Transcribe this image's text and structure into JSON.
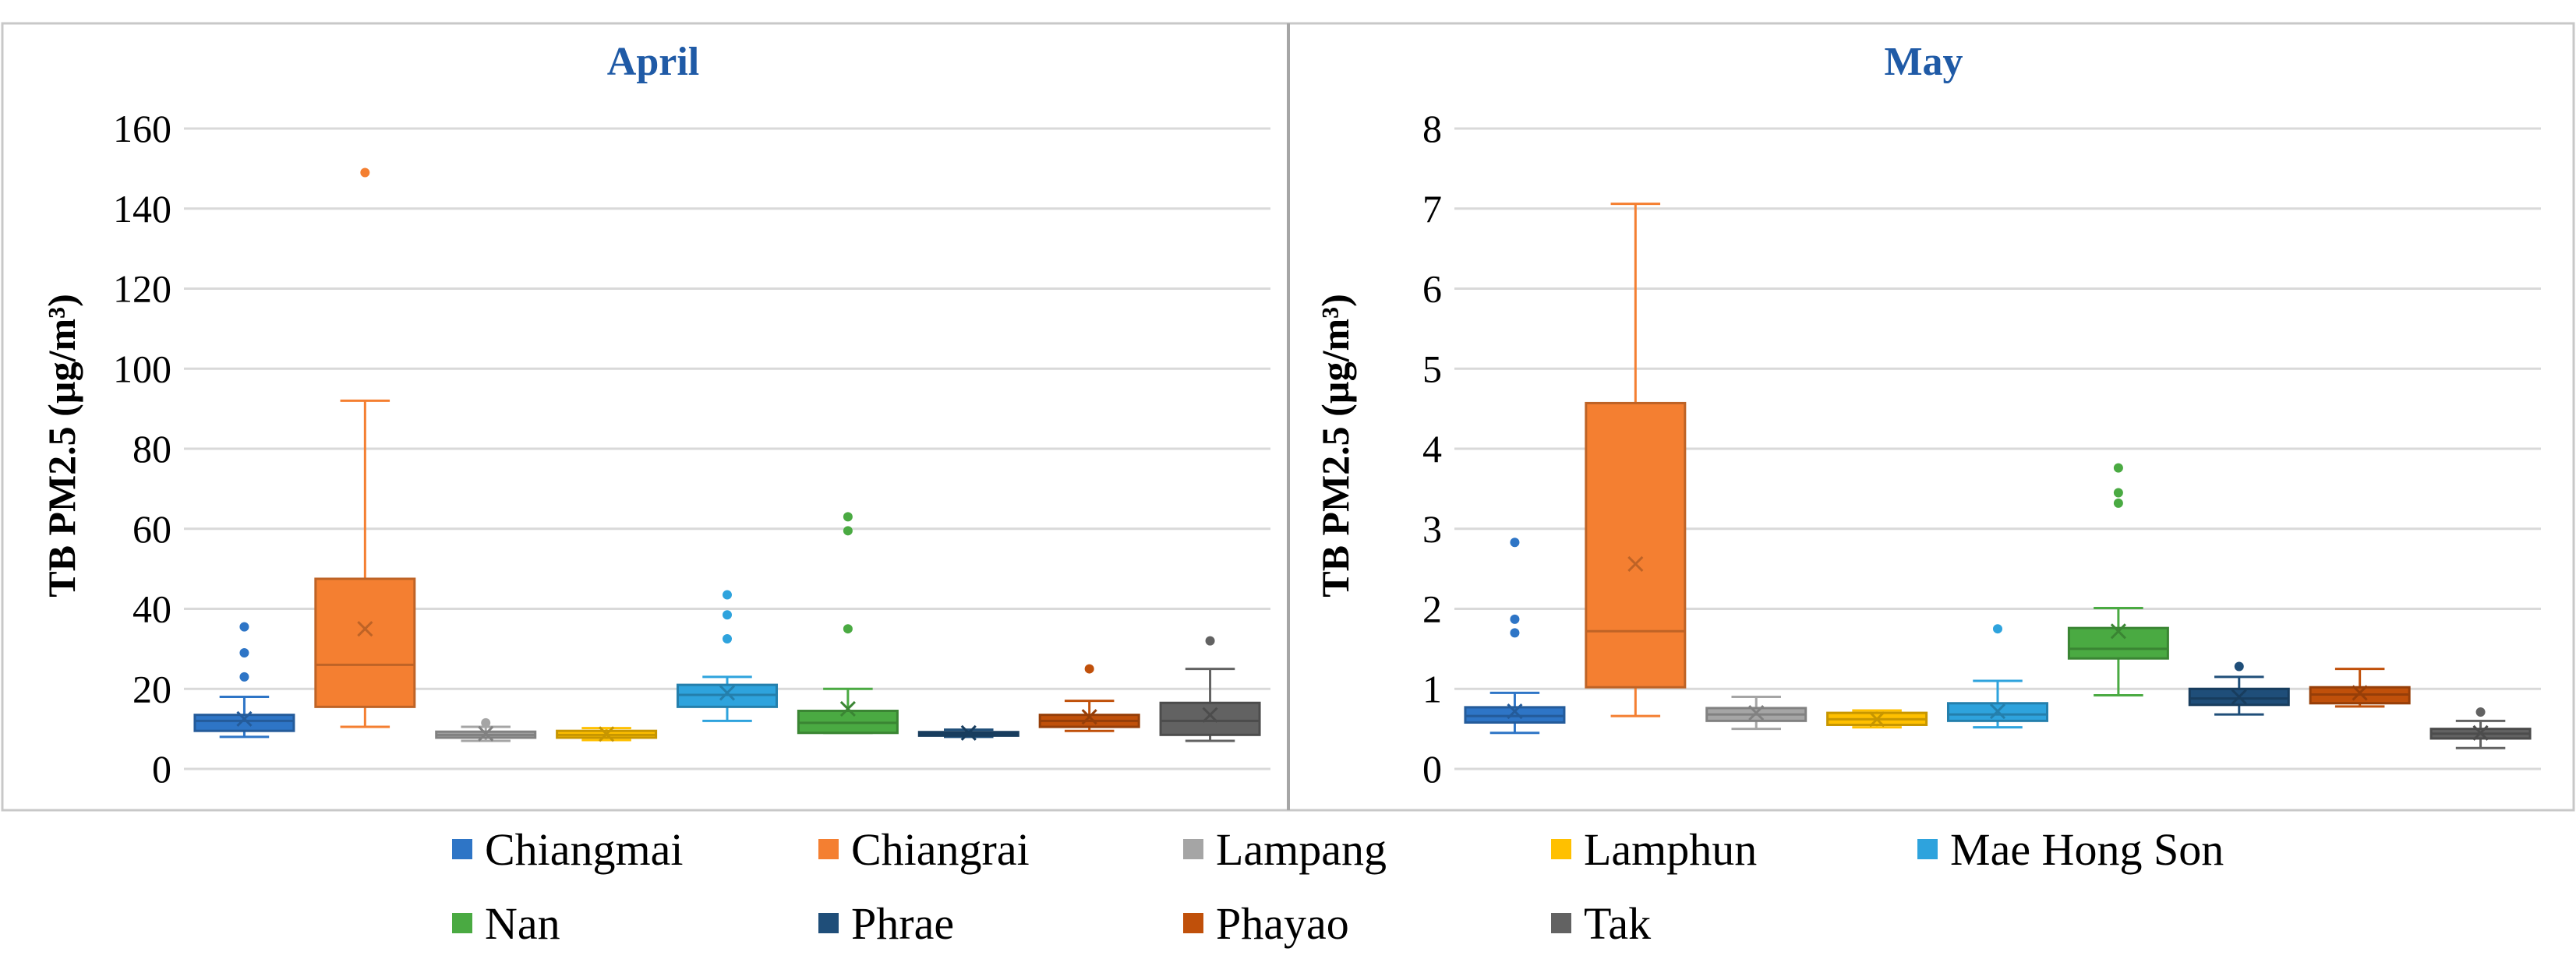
{
  "chart_data": [
    {
      "type": "box",
      "title": "April",
      "ylabel": "TB PM2.5 (µg/m³)",
      "xlabel": "",
      "ylim": [
        0,
        160
      ],
      "yticks": [
        "0",
        "20",
        "40",
        "60",
        "80",
        "100",
        "120",
        "140",
        "160"
      ],
      "grid": true,
      "boxes": [
        {
          "name": "Chiangmai",
          "color": "#2e75c6",
          "whisker_low": 8,
          "q1": 9.5,
          "median": 12,
          "q3": 13.5,
          "whisker_high": 18,
          "mean": 12.5,
          "outliers": [
            23,
            29,
            35.5
          ]
        },
        {
          "name": "Chiangrai",
          "color": "#f47f31",
          "whisker_low": 10.5,
          "q1": 15.5,
          "median": 26,
          "q3": 47.5,
          "whisker_high": 92,
          "mean": 35,
          "outliers": [
            149
          ]
        },
        {
          "name": "Lampang",
          "color": "#a5a5a5",
          "whisker_low": 7,
          "q1": 7.8,
          "median": 8.5,
          "q3": 9.3,
          "whisker_high": 10.5,
          "mean": 8.8,
          "outliers": [
            11.5
          ]
        },
        {
          "name": "Lamphun",
          "color": "#ffc000",
          "whisker_low": 7.2,
          "q1": 7.8,
          "median": 8.5,
          "q3": 9.5,
          "whisker_high": 10.2,
          "mean": 8.7,
          "outliers": []
        },
        {
          "name": "Mae Hong Son",
          "color": "#2ea3dd",
          "whisker_low": 12,
          "q1": 15.5,
          "median": 18.5,
          "q3": 21,
          "whisker_high": 23,
          "mean": 19,
          "outliers": [
            32.5,
            38.5,
            43.5
          ]
        },
        {
          "name": "Nan",
          "color": "#4aaa42",
          "whisker_low": 9,
          "q1": 9,
          "median": 11.5,
          "q3": 14.5,
          "whisker_high": 20,
          "mean": 15,
          "outliers": [
            35,
            59.5,
            63
          ]
        },
        {
          "name": "Phrae",
          "color": "#1f4e79",
          "whisker_low": 8,
          "q1": 8.3,
          "median": 8.7,
          "q3": 9.2,
          "whisker_high": 9.8,
          "mean": 9,
          "outliers": []
        },
        {
          "name": "Phayao",
          "color": "#c0500a",
          "whisker_low": 9.5,
          "q1": 10.5,
          "median": 12,
          "q3": 13.5,
          "whisker_high": 17,
          "mean": 13,
          "outliers": [
            25
          ]
        },
        {
          "name": "Tak",
          "color": "#626262",
          "whisker_low": 7,
          "q1": 8.5,
          "median": 12,
          "q3": 16.5,
          "whisker_high": 25,
          "mean": 13.5,
          "outliers": [
            32
          ]
        }
      ]
    },
    {
      "type": "box",
      "title": "May",
      "ylabel": "TB PM2.5 (µg/m³)",
      "xlabel": "",
      "ylim": [
        0,
        8
      ],
      "yticks": [
        "0",
        "1",
        "2",
        "3",
        "4",
        "5",
        "6",
        "7",
        "8"
      ],
      "grid": true,
      "boxes": [
        {
          "name": "Chiangmai",
          "color": "#2e75c6",
          "whisker_low": 0.45,
          "q1": 0.58,
          "median": 0.66,
          "q3": 0.77,
          "whisker_high": 0.95,
          "mean": 0.72,
          "outliers": [
            1.7,
            1.87,
            2.83
          ]
        },
        {
          "name": "Chiangrai",
          "color": "#f47f31",
          "whisker_low": 0.66,
          "q1": 1.02,
          "median": 1.72,
          "q3": 4.57,
          "whisker_high": 7.06,
          "mean": 2.56,
          "outliers": []
        },
        {
          "name": "Lampang",
          "color": "#a5a5a5",
          "whisker_low": 0.5,
          "q1": 0.6,
          "median": 0.68,
          "q3": 0.76,
          "whisker_high": 0.9,
          "mean": 0.7,
          "outliers": []
        },
        {
          "name": "Lamphun",
          "color": "#ffc000",
          "whisker_low": 0.52,
          "q1": 0.55,
          "median": 0.62,
          "q3": 0.7,
          "whisker_high": 0.73,
          "mean": 0.62,
          "outliers": []
        },
        {
          "name": "Mae Hong Son",
          "color": "#2ea3dd",
          "whisker_low": 0.52,
          "q1": 0.6,
          "median": 0.68,
          "q3": 0.82,
          "whisker_high": 1.1,
          "mean": 0.72,
          "outliers": [
            1.75
          ]
        },
        {
          "name": "Nan",
          "color": "#4aaa42",
          "whisker_low": 0.92,
          "q1": 1.38,
          "median": 1.5,
          "q3": 1.76,
          "whisker_high": 2.01,
          "mean": 1.72,
          "outliers": [
            3.32,
            3.45,
            3.76
          ]
        },
        {
          "name": "Phrae",
          "color": "#1f4e79",
          "whisker_low": 0.68,
          "q1": 0.8,
          "median": 0.88,
          "q3": 1,
          "whisker_high": 1.15,
          "mean": 0.9,
          "outliers": [
            1.28
          ]
        },
        {
          "name": "Phayao",
          "color": "#c0500a",
          "whisker_low": 0.78,
          "q1": 0.82,
          "median": 0.93,
          "q3": 1.02,
          "whisker_high": 1.25,
          "mean": 0.95,
          "outliers": []
        },
        {
          "name": "Tak",
          "color": "#626262",
          "whisker_low": 0.26,
          "q1": 0.38,
          "median": 0.44,
          "q3": 0.5,
          "whisker_high": 0.6,
          "mean": 0.45,
          "outliers": [
            0.71
          ]
        }
      ]
    }
  ],
  "legend": {
    "placement": "bottom-center",
    "items": [
      {
        "label": "Chiangmai",
        "color": "#2e75c6"
      },
      {
        "label": "Chiangrai",
        "color": "#f47f31"
      },
      {
        "label": "Lampang",
        "color": "#a5a5a5"
      },
      {
        "label": "Lamphun",
        "color": "#ffc000"
      },
      {
        "label": "Mae Hong Son",
        "color": "#2ea3dd"
      },
      {
        "label": "Nan",
        "color": "#4aaa42"
      },
      {
        "label": "Phrae",
        "color": "#1f4e79"
      },
      {
        "label": "Phayao",
        "color": "#c0500a"
      },
      {
        "label": "Tak",
        "color": "#626262"
      }
    ]
  }
}
